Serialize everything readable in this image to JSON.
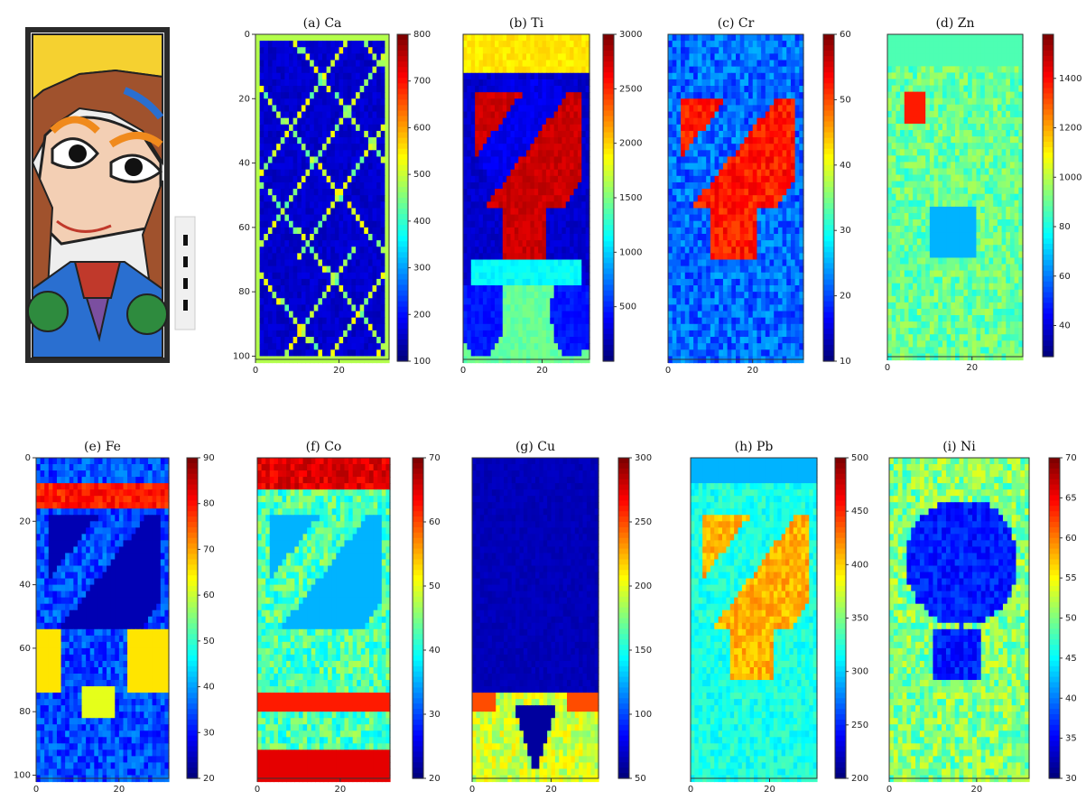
{
  "photo": {
    "description_icon": "painted-tile-photo"
  },
  "chart_data": [
    {
      "type": "heatmap",
      "title": "(a)  Ca",
      "xticks": [
        0,
        20
      ],
      "yticks": [
        0,
        20,
        40,
        60,
        80,
        100
      ],
      "xlim": [
        0,
        32
      ],
      "ylim": [
        0,
        101
      ],
      "colorbar": {
        "ticks": [
          100,
          200,
          300,
          400,
          500,
          600,
          700,
          800
        ],
        "range": [
          100,
          800
        ]
      },
      "pattern": "ca"
    },
    {
      "type": "heatmap",
      "title": "(b)  Ti",
      "xticks": [
        0,
        20
      ],
      "yticks": [],
      "xlim": [
        0,
        32
      ],
      "ylim": [
        0,
        101
      ],
      "colorbar": {
        "ticks": [
          500,
          1000,
          1500,
          2000,
          2500,
          3000
        ],
        "range": [
          0,
          3000
        ]
      },
      "pattern": "ti"
    },
    {
      "type": "heatmap",
      "title": "(c)  Cr",
      "xticks": [
        0,
        20
      ],
      "yticks": [],
      "xlim": [
        0,
        32
      ],
      "ylim": [
        0,
        101
      ],
      "colorbar": {
        "ticks": [
          10,
          20,
          30,
          40,
          50,
          60
        ],
        "range": [
          10,
          60
        ]
      },
      "pattern": "cr"
    },
    {
      "type": "heatmap",
      "title": "(d)  Zn",
      "xticks": [
        0,
        20
      ],
      "yticks": [],
      "xlim": [
        0,
        32
      ],
      "ylim": [
        0,
        101
      ],
      "colorbar": {
        "ticks": [
          40,
          60,
          80,
          1000,
          1200,
          1400
        ],
        "range": [
          30,
          1400
        ]
      },
      "pattern": "zn"
    },
    {
      "type": "heatmap",
      "title": "(e)  Fe",
      "xticks": [
        0,
        20
      ],
      "yticks": [
        0,
        20,
        40,
        60,
        80,
        100
      ],
      "xlim": [
        0,
        32
      ],
      "ylim": [
        0,
        101
      ],
      "colorbar": {
        "ticks": [
          20,
          30,
          40,
          50,
          60,
          70,
          80,
          90
        ],
        "range": [
          20,
          90
        ]
      },
      "pattern": "fe"
    },
    {
      "type": "heatmap",
      "title": "(f)  Co",
      "xticks": [
        0,
        20
      ],
      "yticks": [],
      "xlim": [
        0,
        32
      ],
      "ylim": [
        0,
        101
      ],
      "colorbar": {
        "ticks": [
          20,
          30,
          40,
          50,
          60,
          70
        ],
        "range": [
          20,
          70
        ]
      },
      "pattern": "co"
    },
    {
      "type": "heatmap",
      "title": "(g)  Cu",
      "xticks": [
        0,
        20
      ],
      "yticks": [],
      "xlim": [
        0,
        32
      ],
      "ylim": [
        0,
        101
      ],
      "colorbar": {
        "ticks": [
          50,
          100,
          150,
          200,
          250,
          300
        ],
        "range": [
          50,
          300
        ]
      },
      "pattern": "cu"
    },
    {
      "type": "heatmap",
      "title": "(h)  Pb",
      "xticks": [
        0,
        20
      ],
      "yticks": [],
      "xlim": [
        0,
        32
      ],
      "ylim": [
        0,
        101
      ],
      "colorbar": {
        "ticks": [
          200,
          250,
          300,
          350,
          400,
          450,
          500
        ],
        "range": [
          200,
          500
        ]
      },
      "pattern": "pb"
    },
    {
      "type": "heatmap",
      "title": "(i)  Ni",
      "xticks": [
        0,
        20
      ],
      "yticks": [],
      "xlim": [
        0,
        32
      ],
      "ylim": [
        0,
        101
      ],
      "colorbar": {
        "ticks": [
          30,
          35,
          40,
          45,
          50,
          55,
          60,
          65,
          70
        ],
        "range": [
          30,
          70
        ]
      },
      "pattern": "ni"
    }
  ]
}
